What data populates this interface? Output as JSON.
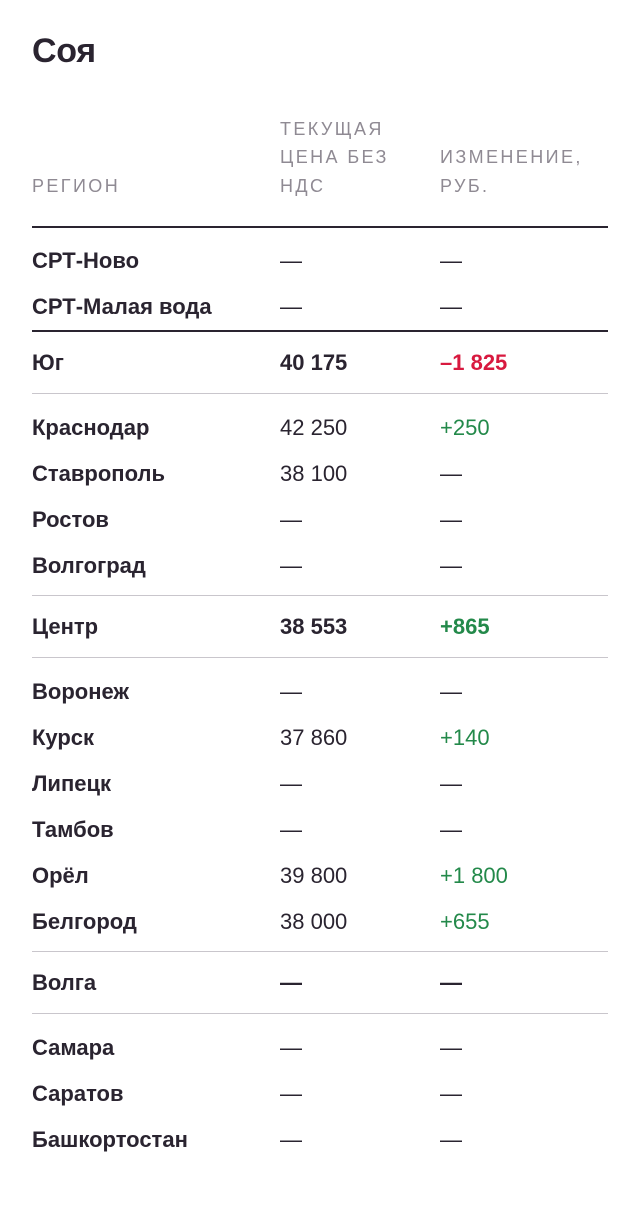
{
  "title": "Соя",
  "colors": {
    "text": "#2a2430",
    "positive": "#23894a",
    "negative": "#d8193f",
    "muted": "#8f8a93"
  },
  "header": {
    "region": "РЕГИОН",
    "price": "ТЕКУЩАЯ ЦЕНА БЕЗ НДС",
    "change": "ИЗМЕНЕНИЕ, РУБ."
  },
  "rows": [
    {
      "region": "СРТ-Ново",
      "price": "—",
      "change": "—"
    },
    {
      "region": "СРТ-Малая вода",
      "price": "—",
      "change": "—"
    },
    {
      "region": "Юг",
      "price": "40 175",
      "change": "–1 825"
    },
    {
      "region": "Краснодар",
      "price": "42 250",
      "change": "+250"
    },
    {
      "region": "Ставрополь",
      "price": "38 100",
      "change": "—"
    },
    {
      "region": "Ростов",
      "price": "—",
      "change": "—"
    },
    {
      "region": "Волгоград",
      "price": "—",
      "change": "—"
    },
    {
      "region": "Центр",
      "price": "38 553",
      "change": "+865"
    },
    {
      "region": "Воронеж",
      "price": "—",
      "change": "—"
    },
    {
      "region": "Курск",
      "price": "37 860",
      "change": "+140"
    },
    {
      "region": "Липецк",
      "price": "—",
      "change": "—"
    },
    {
      "region": "Тамбов",
      "price": "—",
      "change": "—"
    },
    {
      "region": "Орёл",
      "price": "39 800",
      "change": "+1 800"
    },
    {
      "region": "Белгород",
      "price": "38 000",
      "change": "+655"
    },
    {
      "region": "Волга",
      "price": "—",
      "change": "—"
    },
    {
      "region": "Самара",
      "price": "—",
      "change": "—"
    },
    {
      "region": "Саратов",
      "price": "—",
      "change": "—"
    },
    {
      "region": "Башкортостан",
      "price": "—",
      "change": "—"
    }
  ]
}
